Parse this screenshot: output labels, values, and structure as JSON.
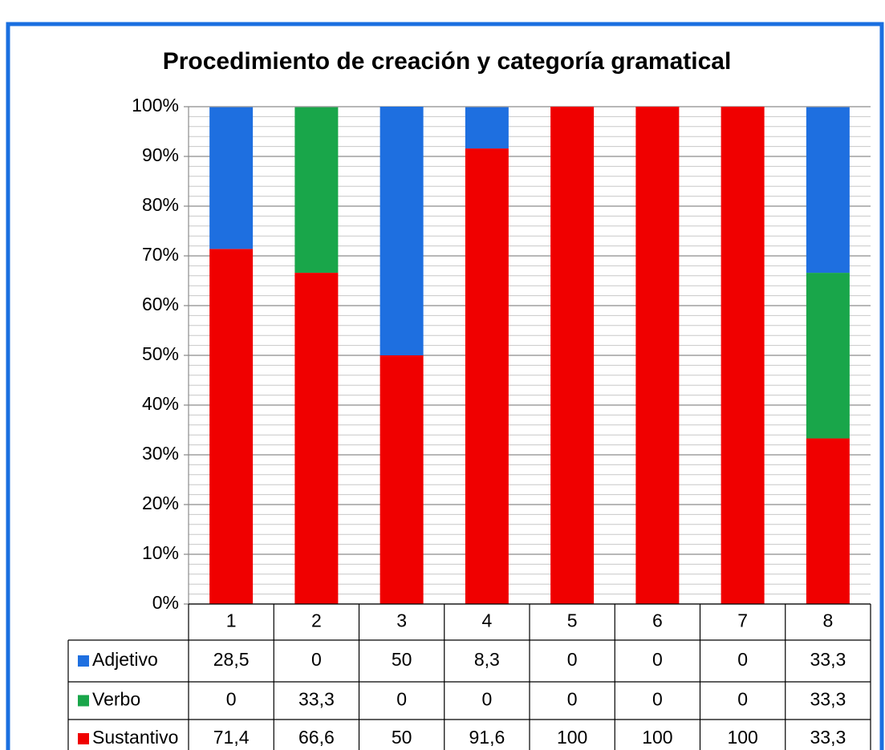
{
  "chart_data": {
    "type": "stacked_bar",
    "title": "Procedimiento de creación y categoría gramatical",
    "categories": [
      "1",
      "2",
      "3",
      "4",
      "5",
      "6",
      "7",
      "8"
    ],
    "series": [
      {
        "name": "Adjetivo",
        "color": "#1e6fe0",
        "values": [
          28.5,
          0,
          50,
          8.3,
          0,
          0,
          0,
          33.3
        ],
        "value_labels": [
          "28,5",
          "0",
          "50",
          "8,3",
          "0",
          "0",
          "0",
          "33,3"
        ]
      },
      {
        "name": "Verbo",
        "color": "#19a64a",
        "values": [
          0,
          33.3,
          0,
          0,
          0,
          0,
          0,
          33.3
        ],
        "value_labels": [
          "0",
          "33,3",
          "0",
          "0",
          "0",
          "0",
          "0",
          "33,3"
        ]
      },
      {
        "name": "Sustantivo",
        "color": "#f00000",
        "values": [
          71.4,
          66.6,
          50,
          91.6,
          100,
          100,
          100,
          33.3
        ],
        "value_labels": [
          "71,4",
          "66,6",
          "50",
          "91,6",
          "100",
          "100",
          "100",
          "33,3"
        ]
      }
    ],
    "ylim": [
      0,
      100
    ],
    "yticks": [
      {
        "value": 0,
        "label": "0%"
      },
      {
        "value": 10,
        "label": "10%"
      },
      {
        "value": 20,
        "label": "20%"
      },
      {
        "value": 30,
        "label": "30%"
      },
      {
        "value": 40,
        "label": "40%"
      },
      {
        "value": 50,
        "label": "50%"
      },
      {
        "value": 60,
        "label": "60%"
      },
      {
        "value": 70,
        "label": "70%"
      },
      {
        "value": 80,
        "label": "80%"
      },
      {
        "value": 90,
        "label": "90%"
      },
      {
        "value": 100,
        "label": "100%"
      }
    ],
    "grid": true,
    "minor_grid": true,
    "data_table": true
  }
}
